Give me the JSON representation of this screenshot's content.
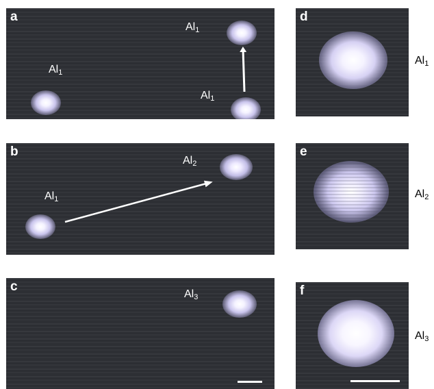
{
  "panels": {
    "a": {
      "letter": "a",
      "labels": [
        "Al",
        "Al",
        "Al"
      ],
      "subs": [
        "1",
        "1",
        "1"
      ]
    },
    "b": {
      "letter": "b",
      "labels": [
        "Al",
        "Al"
      ],
      "subs": [
        "2",
        "1"
      ]
    },
    "c": {
      "letter": "c",
      "labels": [
        "Al"
      ],
      "subs": [
        "3"
      ]
    },
    "d": {
      "letter": "d",
      "side_label": "Al",
      "side_sub": "1"
    },
    "e": {
      "letter": "e",
      "side_label": "Al",
      "side_sub": "2"
    },
    "f": {
      "letter": "f",
      "side_label": "Al",
      "side_sub": "3"
    }
  },
  "colors": {
    "background": "#2f3136",
    "atom": "#f4f2ff",
    "annotation": "#ffffff"
  }
}
